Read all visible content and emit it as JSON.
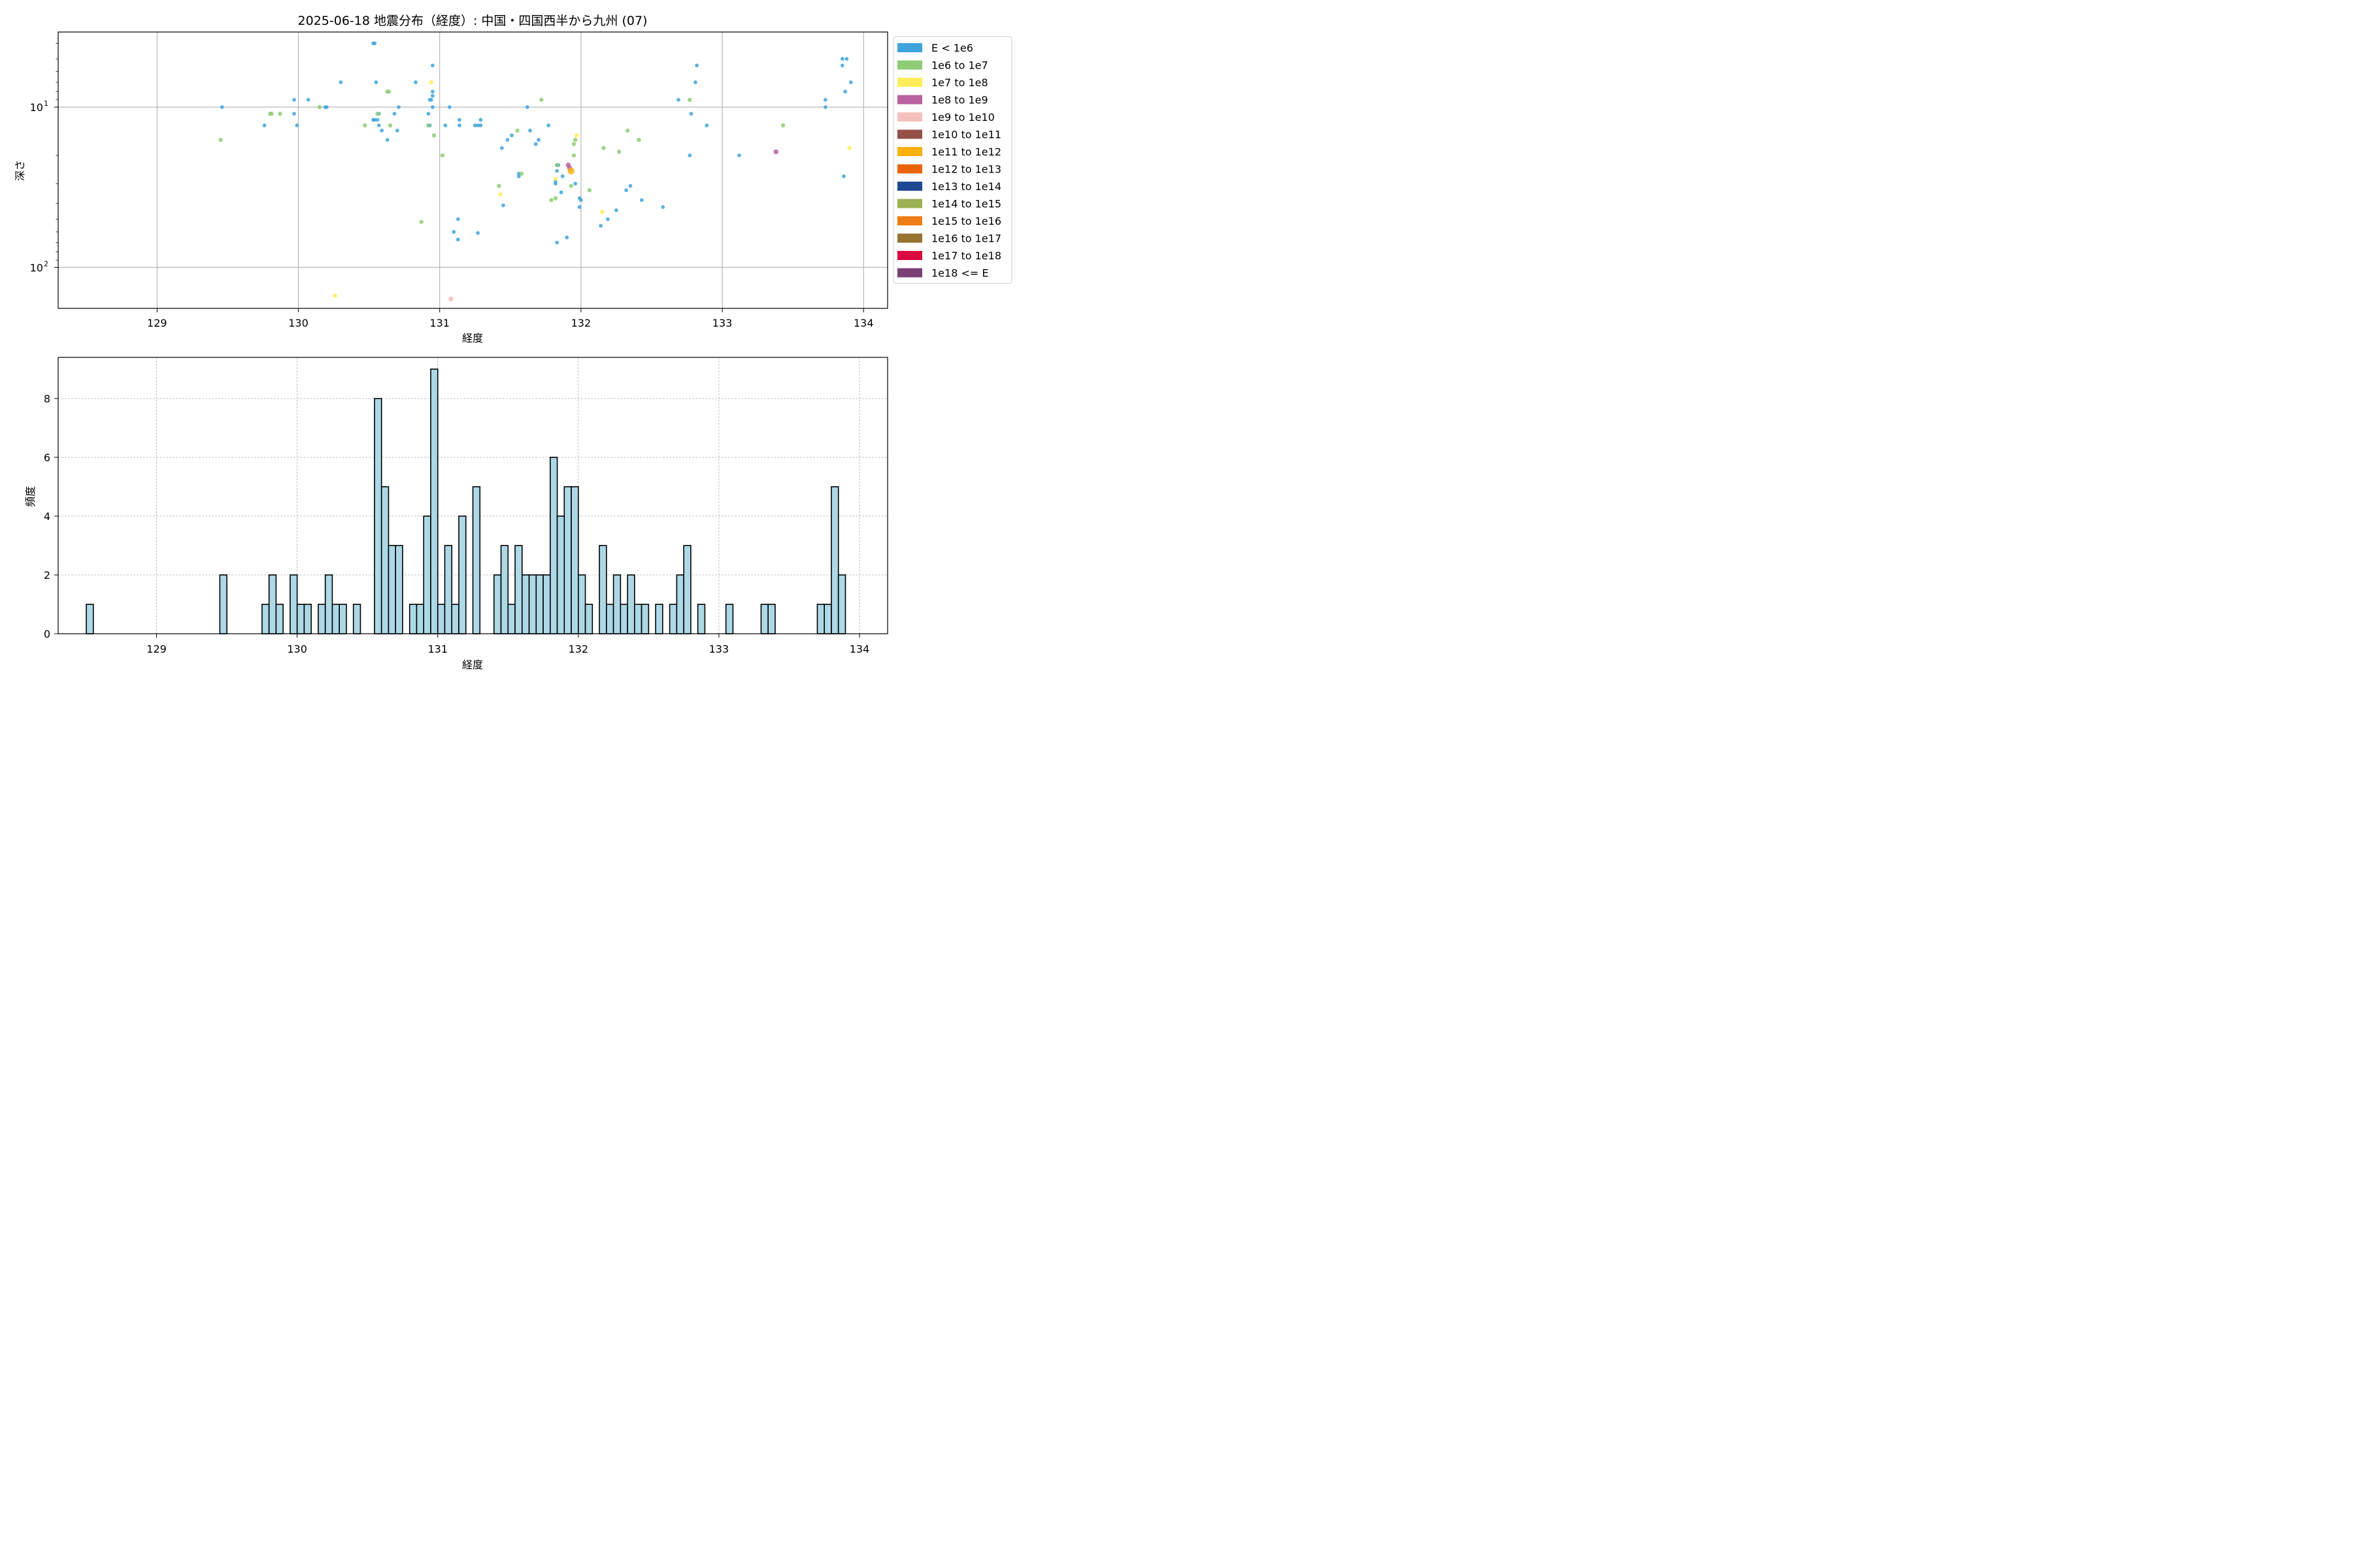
{
  "title": "2025-06-18 地震分布（経度）: 中国・四国西半から九州 (07)",
  "colors": {
    "grid_top": "#b0b0b0",
    "grid_bottom": "#b0b0b0",
    "hist_fill": "#add8e6",
    "hist_edge": "#000000"
  },
  "chart_data": [
    {
      "type": "scatter",
      "name": "depth-vs-longitude",
      "xlabel": "経度",
      "ylabel": "深さ",
      "xlim": [
        128.3,
        134.17
      ],
      "ylim": [
        180,
        3.4
      ],
      "yscale": "log",
      "y_inverted": true,
      "x_ticks": [
        129,
        130,
        131,
        132,
        133,
        134
      ],
      "x_tick_labels": [
        "129",
        "130",
        "131",
        "132",
        "133",
        "134"
      ],
      "y_major_ticks": [
        10,
        100
      ],
      "y_major_labels": [
        "10",
        "10"
      ],
      "y_major_exp": [
        "1",
        "2"
      ],
      "y_minor_ticks": [
        4,
        5,
        6,
        7,
        8,
        9,
        20,
        30,
        40,
        50,
        60,
        70,
        80,
        90
      ],
      "grid": true,
      "legend": {
        "placement": "outside-right",
        "entries": [
          {
            "label": "E < 1e6",
            "color": "#3fa4dc"
          },
          {
            "label": "1e6 to 1e7",
            "color": "#8fcc75"
          },
          {
            "label": "1e7 to 1e8",
            "color": "#fded5b"
          },
          {
            "label": "1e8 to 1e9",
            "color": "#b8629f"
          },
          {
            "label": "1e9 to 1e10",
            "color": "#f4c0bc"
          },
          {
            "label": "1e10 to 1e11",
            "color": "#955049"
          },
          {
            "label": "1e11 to 1e12",
            "color": "#f9b10f"
          },
          {
            "label": "1e12 to 1e13",
            "color": "#e9640a"
          },
          {
            "label": "1e13 to 1e14",
            "color": "#1f4a93"
          },
          {
            "label": "1e14 to 1e15",
            "color": "#9ab052"
          },
          {
            "label": "1e15 to 1e16",
            "color": "#ef7d15"
          },
          {
            "label": "1e16 to 1e17",
            "color": "#977330"
          },
          {
            "label": "1e17 to 1e18",
            "color": "#dc0840"
          },
          {
            "label": "1e18 <= E",
            "color": "#7a3f73"
          }
        ]
      },
      "series": [
        {
          "class": 0,
          "points": [
            [
              130.53,
              4.0
            ],
            [
              130.54,
              4.0
            ],
            [
              130.95,
              5.5
            ],
            [
              130.55,
              7.0
            ],
            [
              130.83,
              7.0
            ],
            [
              130.3,
              7.0
            ],
            [
              133.85,
              5.0
            ],
            [
              133.88,
              5.0
            ],
            [
              133.85,
              5.5
            ],
            [
              133.91,
              7.0
            ],
            [
              132.82,
              5.5
            ],
            [
              132.81,
              7.0
            ],
            [
              133.87,
              8.0
            ],
            [
              130.95,
              8.0
            ],
            [
              130.95,
              8.5
            ],
            [
              129.46,
              10.0
            ],
            [
              129.97,
              9.0
            ],
            [
              130.07,
              9.0
            ],
            [
              130.19,
              10.0
            ],
            [
              130.2,
              10.0
            ],
            [
              130.71,
              10.0
            ],
            [
              130.93,
              9.0
            ],
            [
              130.94,
              9.0
            ],
            [
              130.95,
              10.0
            ],
            [
              131.07,
              10.0
            ],
            [
              131.62,
              10.0
            ],
            [
              132.69,
              9.0
            ],
            [
              133.73,
              9.0
            ],
            [
              133.73,
              10.0
            ],
            [
              129.97,
              11.0
            ],
            [
              130.68,
              11.0
            ],
            [
              130.92,
              11.0
            ],
            [
              130.57,
              11.0
            ],
            [
              130.53,
              12.0
            ],
            [
              130.56,
              12.0
            ],
            [
              130.57,
              13.0
            ],
            [
              130.54,
              12.0
            ],
            [
              130.59,
              14.0
            ],
            [
              130.7,
              14.0
            ],
            [
              130.63,
              16.0
            ],
            [
              129.76,
              13.0
            ],
            [
              129.99,
              13.0
            ],
            [
              130.92,
              13.0
            ],
            [
              130.93,
              13.0
            ],
            [
              131.04,
              13.0
            ],
            [
              131.14,
              12.0
            ],
            [
              131.14,
              13.0
            ],
            [
              131.25,
              13.0
            ],
            [
              131.27,
              13.0
            ],
            [
              131.29,
              12.0
            ],
            [
              131.29,
              13.0
            ],
            [
              131.77,
              13.0
            ],
            [
              132.78,
              11.0
            ],
            [
              132.89,
              13.0
            ],
            [
              131.64,
              14.0
            ],
            [
              131.51,
              15.0
            ],
            [
              131.48,
              16.0
            ],
            [
              131.7,
              16.0
            ],
            [
              131.68,
              17.0
            ],
            [
              131.44,
              18.0
            ],
            [
              132.77,
              20.0
            ],
            [
              133.12,
              20.0
            ],
            [
              131.56,
              26.0
            ],
            [
              131.56,
              27.0
            ],
            [
              131.83,
              23.0
            ],
            [
              131.84,
              23.0
            ],
            [
              131.83,
              25.0
            ],
            [
              131.87,
              27.0
            ],
            [
              131.82,
              29.0
            ],
            [
              131.82,
              30.0
            ],
            [
              131.96,
              30.0
            ],
            [
              132.35,
              31.0
            ],
            [
              132.32,
              33.0
            ],
            [
              131.86,
              34.0
            ],
            [
              133.86,
              27.0
            ],
            [
              131.99,
              37.0
            ],
            [
              132.0,
              38.0
            ],
            [
              132.43,
              38.0
            ],
            [
              131.45,
              41.0
            ],
            [
              131.99,
              42.0
            ],
            [
              132.58,
              42.0
            ],
            [
              132.25,
              44.0
            ],
            [
              132.19,
              50.0
            ],
            [
              131.13,
              50.0
            ],
            [
              132.14,
              55.0
            ],
            [
              131.1,
              60.0
            ],
            [
              131.27,
              61.0
            ],
            [
              131.13,
              67.0
            ],
            [
              131.9,
              65.0
            ],
            [
              131.83,
              70.0
            ]
          ]
        },
        {
          "class": 1,
          "points": [
            [
              129.45,
              16.0
            ],
            [
              129.8,
              11.0
            ],
            [
              129.81,
              11.0
            ],
            [
              129.87,
              11.0
            ],
            [
              130.15,
              10.0
            ],
            [
              130.47,
              13.0
            ],
            [
              130.56,
              11.0
            ],
            [
              130.63,
              8.0
            ],
            [
              130.64,
              8.0
            ],
            [
              130.65,
              13.0
            ],
            [
              130.92,
              13.0
            ],
            [
              130.96,
              15.0
            ],
            [
              131.02,
              20.0
            ],
            [
              130.87,
              52.0
            ],
            [
              131.42,
              31.0
            ],
            [
              131.55,
              14.0
            ],
            [
              131.58,
              26.0
            ],
            [
              131.72,
              9.0
            ],
            [
              131.79,
              38.0
            ],
            [
              131.82,
              37.0
            ],
            [
              131.83,
              23.0
            ],
            [
              131.93,
              31.0
            ],
            [
              131.95,
              17.0
            ],
            [
              131.96,
              16.0
            ],
            [
              131.95,
              20.0
            ],
            [
              132.06,
              33.0
            ],
            [
              132.16,
              18.0
            ],
            [
              132.27,
              19.0
            ],
            [
              132.33,
              14.0
            ],
            [
              132.41,
              16.0
            ],
            [
              132.77,
              9.0
            ],
            [
              133.43,
              13.0
            ]
          ]
        },
        {
          "class": 2,
          "points": [
            [
              130.94,
              7.0
            ],
            [
              131.43,
              35.0
            ],
            [
              131.82,
              28.0
            ],
            [
              131.97,
              15.0
            ],
            [
              132.15,
              45.0
            ],
            [
              133.9,
              18.0
            ],
            [
              130.26,
              150.0
            ]
          ]
        },
        {
          "class": 3,
          "points": [
            [
              131.91,
              23.0
            ],
            [
              131.92,
              24.0
            ],
            [
              133.38,
              19.0
            ]
          ]
        },
        {
          "class": 4,
          "points": [
            [
              131.08,
              157.0
            ]
          ]
        },
        {
          "class": 6,
          "points": [
            [
              131.93,
              25.0
            ]
          ]
        }
      ]
    },
    {
      "type": "bar",
      "name": "longitude-histogram",
      "xlabel": "経度",
      "ylabel": "頻度",
      "xlim": [
        128.3,
        134.2
      ],
      "ylim": [
        0,
        9.4
      ],
      "x_ticks": [
        129,
        130,
        131,
        132,
        133,
        134
      ],
      "x_tick_labels": [
        "129",
        "130",
        "131",
        "132",
        "133",
        "134"
      ],
      "y_ticks": [
        0,
        2,
        4,
        6,
        8
      ],
      "y_tick_labels": [
        "0",
        "2",
        "4",
        "6",
        "8"
      ],
      "grid": true,
      "bin_start": 128.5,
      "bin_width": 0.05,
      "counts": [
        1,
        0,
        0,
        0,
        0,
        0,
        0,
        0,
        0,
        0,
        0,
        0,
        0,
        0,
        0,
        0,
        0,
        0,
        0,
        2,
        0,
        0,
        0,
        0,
        0,
        1,
        2,
        1,
        0,
        2,
        1,
        1,
        0,
        1,
        2,
        1,
        1,
        0,
        1,
        0,
        0,
        8,
        5,
        3,
        3,
        0,
        1,
        1,
        4,
        9,
        1,
        3,
        1,
        4,
        0,
        5,
        0,
        0,
        2,
        3,
        1,
        3,
        2,
        2,
        2,
        2,
        6,
        4,
        5,
        5,
        2,
        1,
        0,
        3,
        1,
        2,
        1,
        2,
        1,
        1,
        0,
        1,
        0,
        1,
        2,
        3,
        0,
        1,
        0,
        0,
        0,
        1,
        0,
        0,
        0,
        0,
        1,
        1,
        0,
        0,
        0,
        0,
        0,
        0,
        1,
        1,
        5,
        2
      ]
    }
  ]
}
